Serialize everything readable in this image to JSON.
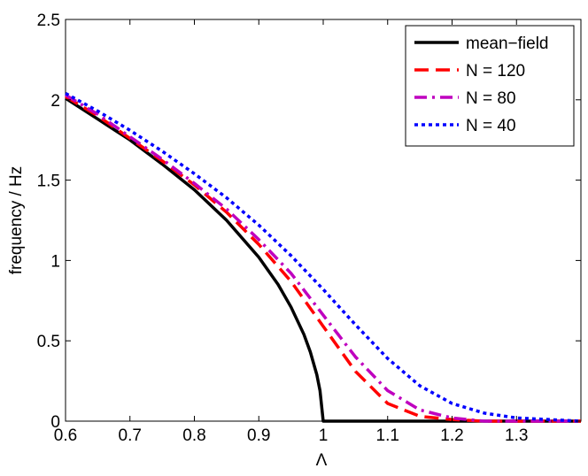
{
  "chart_data": {
    "type": "line",
    "title": "",
    "xlabel": "Λ",
    "ylabel": "frequency / Hz",
    "xlim": [
      0.6,
      1.4
    ],
    "ylim": [
      0,
      2.5
    ],
    "xticks": [
      0.6,
      0.7,
      0.8,
      0.9,
      1,
      1.1,
      1.2,
      1.3
    ],
    "xtick_labels": [
      "0.6",
      "0.7",
      "0.8",
      "0.9",
      "1",
      "1.1",
      "1.2",
      "1.3"
    ],
    "yticks": [
      0,
      0.5,
      1,
      1.5,
      2,
      2.5
    ],
    "ytick_labels": [
      "0",
      "0.5",
      "1",
      "1.5",
      "2",
      "2.5"
    ],
    "grid": false,
    "legend_position": "top-right",
    "series": [
      {
        "name": "mean−field",
        "color": "#000000",
        "style": "solid",
        "x": [
          0.6,
          0.65,
          0.7,
          0.75,
          0.8,
          0.85,
          0.9,
          0.93,
          0.95,
          0.97,
          0.98,
          0.99,
          0.995,
          1.0,
          1.05,
          1.1,
          1.2,
          1.3,
          1.4
        ],
        "y": [
          2.01,
          1.88,
          1.75,
          1.6,
          1.44,
          1.25,
          1.02,
          0.85,
          0.71,
          0.54,
          0.43,
          0.29,
          0.19,
          0.0,
          0.0,
          0.0,
          0.0,
          0.0,
          0.0
        ]
      },
      {
        "name": "N = 120",
        "color": "#ff0000",
        "style": "dashed",
        "x": [
          0.6,
          0.65,
          0.7,
          0.75,
          0.8,
          0.85,
          0.9,
          0.95,
          1.0,
          1.05,
          1.1,
          1.15,
          1.2,
          1.25,
          1.3,
          1.35,
          1.4
        ],
        "y": [
          2.02,
          1.9,
          1.76,
          1.62,
          1.47,
          1.3,
          1.1,
          0.87,
          0.59,
          0.31,
          0.11,
          0.03,
          0.01,
          0.0,
          0.0,
          0.0,
          0.0
        ]
      },
      {
        "name": "N = 80",
        "color": "#bf00bf",
        "style": "dashdot",
        "x": [
          0.6,
          0.65,
          0.7,
          0.75,
          0.8,
          0.85,
          0.9,
          0.95,
          1.0,
          1.05,
          1.1,
          1.15,
          1.2,
          1.25,
          1.3,
          1.35,
          1.4
        ],
        "y": [
          2.03,
          1.91,
          1.77,
          1.63,
          1.48,
          1.32,
          1.13,
          0.92,
          0.66,
          0.4,
          0.19,
          0.07,
          0.02,
          0.0,
          0.0,
          0.0,
          0.0
        ]
      },
      {
        "name": "N = 40",
        "color": "#0000ff",
        "style": "dotted",
        "x": [
          0.6,
          0.65,
          0.7,
          0.75,
          0.8,
          0.85,
          0.9,
          0.95,
          1.0,
          1.05,
          1.1,
          1.15,
          1.2,
          1.25,
          1.3,
          1.35,
          1.4
        ],
        "y": [
          2.04,
          1.93,
          1.81,
          1.68,
          1.54,
          1.39,
          1.22,
          1.03,
          0.82,
          0.6,
          0.39,
          0.22,
          0.11,
          0.05,
          0.02,
          0.01,
          0.0
        ]
      }
    ]
  }
}
